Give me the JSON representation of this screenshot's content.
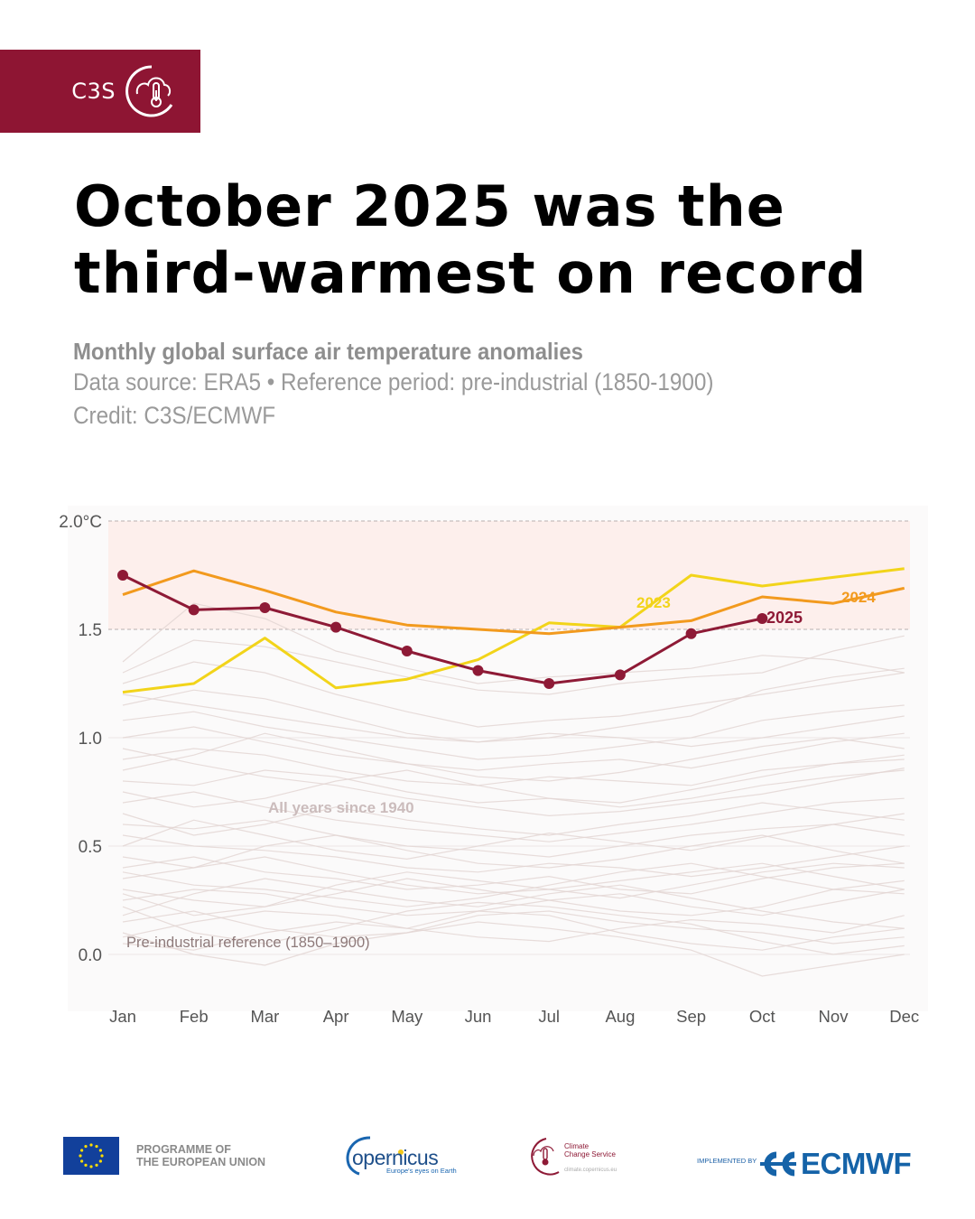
{
  "brand": {
    "label": "C3S",
    "icon": "cloud-thermometer-icon",
    "color": "#8e1533"
  },
  "title_line1": "October 2025 was the",
  "title_line2": "third-warmest on record",
  "subtitle": "Monthly global surface air temperature anomalies",
  "source": "Data source: ERA5 • Reference period: pre-industrial (1850-1900)",
  "credit": "Credit: C3S/ECMWF",
  "footer": {
    "eu_line1": "PROGRAMME OF",
    "eu_line2": "THE EUROPEAN UNION",
    "copernicus_name": "opernicus",
    "copernicus_tagline": "Europe's eyes on Earth",
    "c3s_line1": "Climate",
    "c3s_line2": "Change Service",
    "c3s_url": "climate.copernicus.eu",
    "implemented_by": "IMPLEMENTED BY",
    "ecmwf": "ECMWF"
  },
  "chart_data": {
    "type": "line",
    "title": "Monthly global surface air temperature anomalies",
    "xlabel": "",
    "ylabel": "",
    "categories": [
      "Jan",
      "Feb",
      "Mar",
      "Apr",
      "May",
      "Jun",
      "Jul",
      "Aug",
      "Sep",
      "Oct",
      "Nov",
      "Dec"
    ],
    "ylim": [
      -0.2,
      2.05
    ],
    "yticks": [
      0.0,
      0.5,
      1.0,
      1.5,
      2.0
    ],
    "ytick_labels": [
      "0.0",
      "0.5",
      "1.0",
      "1.5",
      "2.0°C"
    ],
    "grid": "horizontal dashed at 1.5 and 2.0",
    "shaded_band": {
      "from": 1.5,
      "to": 2.0,
      "color": "#fdefec"
    },
    "series": [
      {
        "name": "2023",
        "color": "#f2d41a",
        "markers": false,
        "values": [
          1.21,
          1.25,
          1.46,
          1.23,
          1.27,
          1.36,
          1.53,
          1.51,
          1.75,
          1.7,
          1.74,
          1.78
        ]
      },
      {
        "name": "2024",
        "color": "#f29a1e",
        "markers": false,
        "values": [
          1.66,
          1.77,
          1.68,
          1.58,
          1.52,
          1.5,
          1.48,
          1.51,
          1.54,
          1.65,
          1.62,
          1.69
        ]
      },
      {
        "name": "2025",
        "color": "#8e1a36",
        "markers": true,
        "values": [
          1.75,
          1.59,
          1.6,
          1.51,
          1.4,
          1.31,
          1.25,
          1.29,
          1.48,
          1.55,
          null,
          null
        ]
      }
    ],
    "background_series_label": "All years since 1940",
    "background_series_color": "#e3d6d4",
    "background_series": [
      [
        0.05,
        0.02,
        0.1,
        0.15,
        0.12,
        0.2,
        0.18,
        0.1,
        0.05,
        0.02,
        0.08,
        0.12
      ],
      [
        0.3,
        0.25,
        0.22,
        0.28,
        0.35,
        0.3,
        0.25,
        0.2,
        0.18,
        0.22,
        0.3,
        0.28
      ],
      [
        0.15,
        0.2,
        0.12,
        0.08,
        0.1,
        0.18,
        0.2,
        0.15,
        0.12,
        0.1,
        0.05,
        0.08
      ],
      [
        0.4,
        0.45,
        0.38,
        0.35,
        0.3,
        0.32,
        0.36,
        0.3,
        0.28,
        0.35,
        0.4,
        0.42
      ],
      [
        0.22,
        0.1,
        0.05,
        0.12,
        0.2,
        0.24,
        0.22,
        0.18,
        0.14,
        0.06,
        0.0,
        0.04
      ],
      [
        0.55,
        0.5,
        0.48,
        0.45,
        0.4,
        0.38,
        0.42,
        0.4,
        0.36,
        0.4,
        0.45,
        0.5
      ],
      [
        0.1,
        0.0,
        -0.05,
        0.05,
        0.1,
        0.15,
        0.12,
        0.08,
        0.02,
        -0.1,
        -0.05,
        0.0
      ],
      [
        0.35,
        0.4,
        0.45,
        0.38,
        0.32,
        0.28,
        0.3,
        0.34,
        0.38,
        0.42,
        0.36,
        0.3
      ],
      [
        0.6,
        0.58,
        0.62,
        0.55,
        0.5,
        0.48,
        0.45,
        0.5,
        0.55,
        0.58,
        0.6,
        0.65
      ],
      [
        0.25,
        0.3,
        0.28,
        0.22,
        0.18,
        0.2,
        0.25,
        0.28,
        0.22,
        0.18,
        0.24,
        0.3
      ],
      [
        0.7,
        0.75,
        0.68,
        0.62,
        0.58,
        0.55,
        0.52,
        0.56,
        0.6,
        0.65,
        0.7,
        0.72
      ],
      [
        0.45,
        0.4,
        0.5,
        0.55,
        0.48,
        0.42,
        0.4,
        0.44,
        0.5,
        0.55,
        0.48,
        0.42
      ],
      [
        0.8,
        0.78,
        0.85,
        0.82,
        0.75,
        0.7,
        0.72,
        0.68,
        0.72,
        0.78,
        0.82,
        0.85
      ],
      [
        0.18,
        0.28,
        0.35,
        0.3,
        0.25,
        0.22,
        0.28,
        0.32,
        0.26,
        0.2,
        0.15,
        0.12
      ],
      [
        0.9,
        0.95,
        0.92,
        0.85,
        0.8,
        0.78,
        0.82,
        0.8,
        0.78,
        0.85,
        0.88,
        0.92
      ],
      [
        0.65,
        0.55,
        0.6,
        0.68,
        0.62,
        0.58,
        0.55,
        0.6,
        0.64,
        0.7,
        0.66,
        0.62
      ],
      [
        1.0,
        1.05,
        0.98,
        0.92,
        0.88,
        0.85,
        0.88,
        0.9,
        0.86,
        0.92,
        0.98,
        1.02
      ],
      [
        0.85,
        0.92,
        1.02,
        0.95,
        0.88,
        0.82,
        0.8,
        0.84,
        0.9,
        0.96,
        1.0,
        0.95
      ],
      [
        1.08,
        1.12,
        1.05,
        1.0,
        0.95,
        0.9,
        0.92,
        0.96,
        1.0,
        1.08,
        1.12,
        1.15
      ],
      [
        0.75,
        0.68,
        0.72,
        0.8,
        0.85,
        0.78,
        0.72,
        0.7,
        0.76,
        0.82,
        0.88,
        0.9
      ],
      [
        1.15,
        1.22,
        1.18,
        1.1,
        1.02,
        0.98,
        1.0,
        1.05,
        1.1,
        1.22,
        1.28,
        1.32
      ],
      [
        1.25,
        1.35,
        1.3,
        1.2,
        1.12,
        1.05,
        1.08,
        1.1,
        1.15,
        1.2,
        1.25,
        1.3
      ],
      [
        1.3,
        1.45,
        1.42,
        1.35,
        1.28,
        1.22,
        1.2,
        1.25,
        1.28,
        1.3,
        1.4,
        1.47
      ],
      [
        1.35,
        1.62,
        1.55,
        1.4,
        1.32,
        1.25,
        1.28,
        1.3,
        1.32,
        1.38,
        1.36,
        1.3
      ],
      [
        0.5,
        0.62,
        0.55,
        0.48,
        0.44,
        0.5,
        0.56,
        0.52,
        0.48,
        0.54,
        0.6,
        0.55
      ],
      [
        0.28,
        0.18,
        0.22,
        0.32,
        0.38,
        0.34,
        0.3,
        0.26,
        0.32,
        0.38,
        0.42,
        0.4
      ],
      [
        0.08,
        0.15,
        0.2,
        0.18,
        0.12,
        0.08,
        0.06,
        0.12,
        0.16,
        0.14,
        0.1,
        0.18
      ],
      [
        0.38,
        0.32,
        0.3,
        0.26,
        0.22,
        0.26,
        0.32,
        0.38,
        0.42,
        0.36,
        0.3,
        0.34
      ],
      [
        0.95,
        0.88,
        0.82,
        0.78,
        0.72,
        0.68,
        0.64,
        0.66,
        0.7,
        0.74,
        0.8,
        0.86
      ],
      [
        1.2,
        1.15,
        1.1,
        1.05,
        1.0,
        0.98,
        1.02,
        1.0,
        0.96,
        1.0,
        1.05,
        1.1
      ]
    ],
    "annotations": [
      {
        "text": "All years since 1940",
        "month": "May",
        "value": 0.68
      },
      {
        "text": "Pre-industrial reference (1850–1900)",
        "month": "Jan",
        "value": 0.02
      },
      {
        "text": "2023",
        "month": "Aug",
        "value": 1.62
      },
      {
        "text": "2024",
        "month": "Nov",
        "value": 1.64
      },
      {
        "text": "2025",
        "month": "Oct",
        "value": 1.55
      }
    ]
  }
}
